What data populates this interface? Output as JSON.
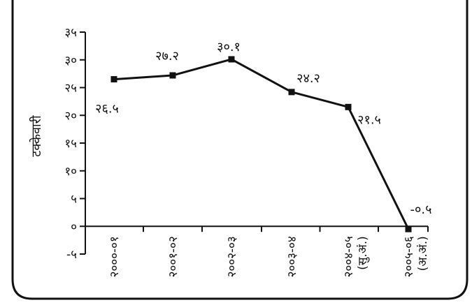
{
  "chart_data": {
    "type": "line",
    "ylabel": "टक्केवारी",
    "ylim": [
      -5,
      35
    ],
    "yticks": [
      "-५",
      "०",
      "५",
      "१०",
      "१५",
      "२०",
      "२५",
      "३०",
      "३५"
    ],
    "ytick_values": [
      -5,
      0,
      5,
      10,
      15,
      20,
      25,
      30,
      35
    ],
    "categories": [
      [
        "२०००-०१"
      ],
      [
        "२००१-०२"
      ],
      [
        "२००२-०३"
      ],
      [
        "२००३-०४"
      ],
      [
        "२००४-०५",
        "(सु.अं.)"
      ],
      [
        "२००५-०६",
        "(अ.अं.)"
      ]
    ],
    "values": [
      26.5,
      27.2,
      30.1,
      24.2,
      21.5,
      -0.5
    ],
    "data_labels": [
      "२६.५",
      "२७.२",
      "३०.१",
      "२४.२",
      "२१.५",
      "-०.५"
    ],
    "grid": false,
    "legend": "none",
    "line_color": "#111111"
  }
}
